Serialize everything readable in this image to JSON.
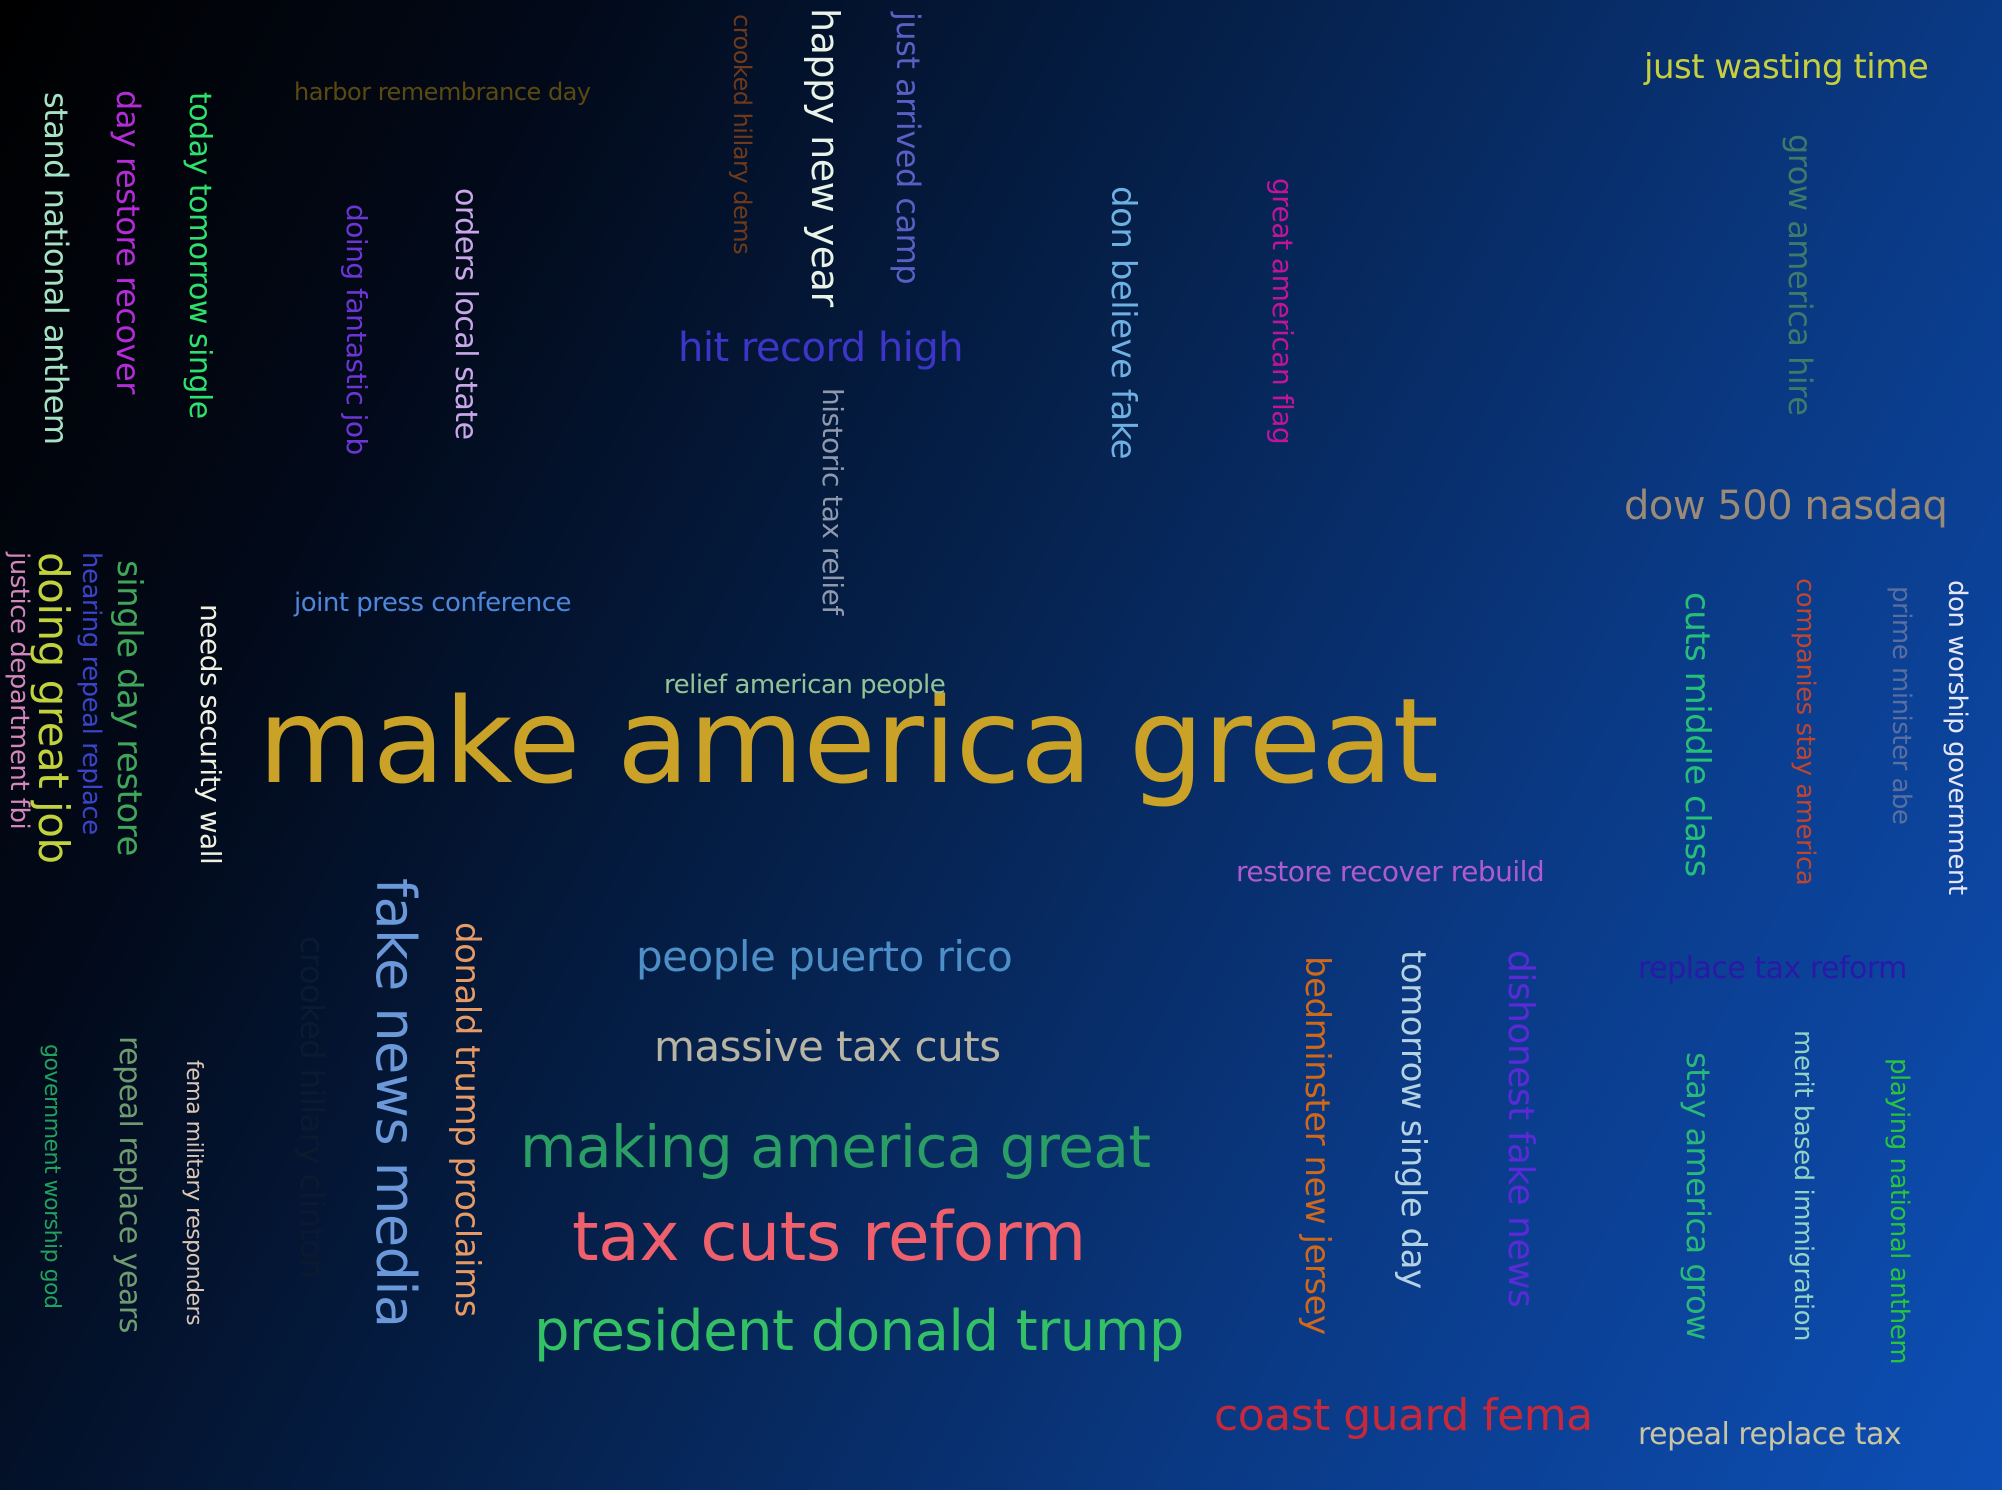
{
  "words": {
    "make_america_great": {
      "text": "make america great",
      "color": "#c9a227"
    },
    "just_wasting_time": {
      "text": "just wasting time",
      "color": "#c6cf3e"
    },
    "harbor_remembrance_day": {
      "text": "harbor remembrance day",
      "color": "#5a4a10"
    },
    "crooked_hillary_dems": {
      "text": "crooked hillary dems",
      "color": "#6e3a1a"
    },
    "happy_new_year": {
      "text": "happy new year",
      "color": "#e8f2e6"
    },
    "just_arrived_camp": {
      "text": "just arrived camp",
      "color": "#5a5fc4"
    },
    "hit_record_high": {
      "text": "hit record high",
      "color": "#3d34c8"
    },
    "historic_tax_relief": {
      "text": "historic tax relief",
      "color": "#8f99ad"
    },
    "don_believe_fake": {
      "text": "don believe fake",
      "color": "#6fb0e2"
    },
    "great_american_flag": {
      "text": "great american flag",
      "color": "#c2149a"
    },
    "grow_america_hire": {
      "text": "grow america hire",
      "color": "#3e7a6a"
    },
    "dow_500_nasdaq": {
      "text": "dow 500 nasdaq",
      "color": "#9a8a76"
    },
    "stand_national_anthem": {
      "text": "stand national anthem",
      "color": "#a6e2c4"
    },
    "day_restore_recover": {
      "text": "day restore recover",
      "color": "#b32cd6"
    },
    "today_tomorrow_single": {
      "text": "today tomorrow single",
      "color": "#2ee06e"
    },
    "doing_fantastic_job": {
      "text": "doing fantastic job",
      "color": "#6c35d4"
    },
    "orders_local_state": {
      "text": "orders local state",
      "color": "#c8a6e8"
    },
    "joint_press_conference": {
      "text": "joint press conference",
      "color": "#4e86dc"
    },
    "relief_american_people": {
      "text": "relief american people",
      "color": "#93c496"
    },
    "restore_recover_rebuild": {
      "text": "restore recover rebuild",
      "color": "#b05ad0"
    },
    "cuts_middle_class": {
      "text": "cuts middle class",
      "color": "#24c07a"
    },
    "companies_stay_america": {
      "text": "companies stay america",
      "color": "#c0452e"
    },
    "prime_minister_abe": {
      "text": "prime minister abe",
      "color": "#5a6fa0"
    },
    "don_worship_government": {
      "text": "don worship government",
      "color": "#e6e6f6"
    },
    "justice_department_fbi": {
      "text": "justice department fbi",
      "color": "#d486bd"
    },
    "doing_great_job": {
      "text": "doing great job",
      "color": "#c2d23c"
    },
    "hearing_repeal_replace": {
      "text": "hearing repeal replace",
      "color": "#3a44c8"
    },
    "single_day_restore": {
      "text": "single day restore",
      "color": "#40a65a"
    },
    "needs_security_wall": {
      "text": "needs security wall",
      "color": "#f0f0e0"
    },
    "crooked_hillary_clinton": {
      "text": "crooked hillary clinton",
      "color": "#0c1a30"
    },
    "fake_news_media": {
      "text": "fake news media",
      "color": "#6a98d8"
    },
    "donald_trump_proclaims": {
      "text": "donald trump proclaims",
      "color": "#e89a64"
    },
    "people_puerto_rico": {
      "text": "people puerto rico",
      "color": "#4d8fc6"
    },
    "massive_tax_cuts": {
      "text": "massive tax cuts",
      "color": "#b8b4a4"
    },
    "making_america_great": {
      "text": "making america great",
      "color": "#2a9e64"
    },
    "tax_cuts_reform": {
      "text": "tax cuts reform",
      "color": "#f0606c"
    },
    "president_donald_trump": {
      "text": "president donald trump",
      "color": "#34c064"
    },
    "bedminster_new_jersey": {
      "text": "bedminster new jersey",
      "color": "#d0681a"
    },
    "tomorrow_single_day": {
      "text": "tomorrow single day",
      "color": "#b4d2e2"
    },
    "dishonest_fake_news": {
      "text": "dishonest fake news",
      "color": "#5a2ad8"
    },
    "replace_tax_reform": {
      "text": "replace tax reform",
      "color": "#2a18a8"
    },
    "stay_america_grow": {
      "text": "stay america grow",
      "color": "#28b878"
    },
    "merit_based_immigration": {
      "text": "merit based immigration",
      "color": "#92d2c6"
    },
    "playing_national_anthem": {
      "text": "playing national anthem",
      "color": "#28c43e"
    },
    "coast_guard_fema": {
      "text": "coast guard fema",
      "color": "#c8283a"
    },
    "repeal_replace_tax": {
      "text": "repeal replace tax",
      "color": "#c8c4a4"
    },
    "government_worship_god": {
      "text": "government worship god",
      "color": "#22a05e"
    },
    "repeal_replace_years": {
      "text": "repeal replace years",
      "color": "#6e9c6e"
    },
    "fema_military_responders": {
      "text": "fema military responders",
      "color": "#dcc6b6"
    }
  }
}
